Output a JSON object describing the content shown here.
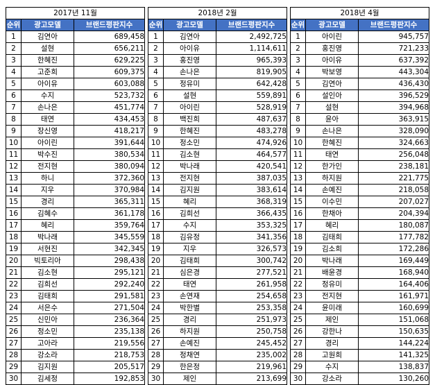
{
  "headers": {
    "rank": "순위",
    "model": "광고모델",
    "index": "브랜드평판지수"
  },
  "panels": [
    {
      "period": "2017년 11월",
      "rows": [
        [
          "1",
          "김연아",
          "689,458"
        ],
        [
          "2",
          "설현",
          "656,211"
        ],
        [
          "3",
          "한혜진",
          "629,225"
        ],
        [
          "4",
          "고준희",
          "609,375"
        ],
        [
          "5",
          "아이유",
          "603,088"
        ],
        [
          "6",
          "수지",
          "523,732"
        ],
        [
          "7",
          "손나은",
          "451,774"
        ],
        [
          "8",
          "태연",
          "434,453"
        ],
        [
          "9",
          "장신영",
          "418,217"
        ],
        [
          "10",
          "아이린",
          "391,644"
        ],
        [
          "11",
          "박수진",
          "380,534"
        ],
        [
          "12",
          "전지현",
          "380,094"
        ],
        [
          "13",
          "하니",
          "372,360"
        ],
        [
          "14",
          "지우",
          "370,984"
        ],
        [
          "15",
          "경리",
          "365,311"
        ],
        [
          "16",
          "김혜수",
          "361,178"
        ],
        [
          "17",
          "혜리",
          "359,764"
        ],
        [
          "18",
          "박나래",
          "345,559"
        ],
        [
          "19",
          "서현진",
          "342,345"
        ],
        [
          "20",
          "빅토리아",
          "298,438"
        ],
        [
          "21",
          "김소현",
          "295,121"
        ],
        [
          "22",
          "김희선",
          "292,240"
        ],
        [
          "23",
          "김태희",
          "291,581"
        ],
        [
          "24",
          "서은수",
          "271,504"
        ],
        [
          "25",
          "신민아",
          "236,364"
        ],
        [
          "26",
          "정소민",
          "235,138"
        ],
        [
          "27",
          "고아라",
          "219,556"
        ],
        [
          "28",
          "강소라",
          "218,753"
        ],
        [
          "29",
          "김지원",
          "205,517"
        ],
        [
          "30",
          "김세정",
          "192,853"
        ]
      ]
    },
    {
      "period": "2018년 2월",
      "rows": [
        [
          "1",
          "김연아",
          "2,492,725"
        ],
        [
          "2",
          "아이유",
          "1,114,611"
        ],
        [
          "3",
          "홍진영",
          "965,393"
        ],
        [
          "4",
          "손나은",
          "819,905"
        ],
        [
          "5",
          "정유미",
          "642,428"
        ],
        [
          "6",
          "설현",
          "559,891"
        ],
        [
          "7",
          "아이린",
          "528,919"
        ],
        [
          "8",
          "백진희",
          "487,637"
        ],
        [
          "9",
          "한혜진",
          "483,278"
        ],
        [
          "10",
          "정소민",
          "474,926"
        ],
        [
          "11",
          "김소현",
          "464,577"
        ],
        [
          "12",
          "박나래",
          "420,541"
        ],
        [
          "13",
          "전지현",
          "387,035"
        ],
        [
          "14",
          "김지원",
          "383,614"
        ],
        [
          "15",
          "혜리",
          "368,319"
        ],
        [
          "16",
          "김희선",
          "366,435"
        ],
        [
          "17",
          "수지",
          "353,325"
        ],
        [
          "18",
          "김유정",
          "341,356"
        ],
        [
          "19",
          "지우",
          "326,573"
        ],
        [
          "20",
          "김태희",
          "300,742"
        ],
        [
          "21",
          "심은경",
          "277,521"
        ],
        [
          "22",
          "태연",
          "261,958"
        ],
        [
          "23",
          "손연재",
          "254,658"
        ],
        [
          "24",
          "박한별",
          "253,358"
        ],
        [
          "25",
          "경리",
          "251,973"
        ],
        [
          "26",
          "하지원",
          "250,758"
        ],
        [
          "27",
          "손예진",
          "245,452"
        ],
        [
          "28",
          "정채연",
          "235,002"
        ],
        [
          "29",
          "한은정",
          "219,961"
        ],
        [
          "30",
          "제인",
          "213,699"
        ]
      ]
    },
    {
      "period": "2018년 4월",
      "rows": [
        [
          "1",
          "아이린",
          "945,757"
        ],
        [
          "2",
          "홍진영",
          "721,233"
        ],
        [
          "3",
          "아이유",
          "637,392"
        ],
        [
          "4",
          "박보영",
          "443,304"
        ],
        [
          "5",
          "김연아",
          "436,430"
        ],
        [
          "6",
          "설인아",
          "396,529"
        ],
        [
          "7",
          "설현",
          "394,968"
        ],
        [
          "8",
          "윤아",
          "363,915"
        ],
        [
          "9",
          "손나은",
          "328,090"
        ],
        [
          "10",
          "한혜진",
          "324,663"
        ],
        [
          "11",
          "태연",
          "256,048"
        ],
        [
          "12",
          "한가인",
          "238,181"
        ],
        [
          "13",
          "하지원",
          "221,775"
        ],
        [
          "14",
          "손예진",
          "218,058"
        ],
        [
          "15",
          "이수민",
          "207,027"
        ],
        [
          "16",
          "한채아",
          "204,394"
        ],
        [
          "17",
          "혜리",
          "180,087"
        ],
        [
          "18",
          "김태희",
          "177,782"
        ],
        [
          "19",
          "김소희",
          "172,286"
        ],
        [
          "20",
          "박나래",
          "169,449"
        ],
        [
          "21",
          "배윤경",
          "168,940"
        ],
        [
          "22",
          "정유미",
          "164,406"
        ],
        [
          "23",
          "전지현",
          "161,971"
        ],
        [
          "24",
          "윤미래",
          "160,699"
        ],
        [
          "25",
          "제인",
          "151,068"
        ],
        [
          "26",
          "강한나",
          "150,635"
        ],
        [
          "27",
          "경리",
          "144,224"
        ],
        [
          "28",
          "고원희",
          "141,325"
        ],
        [
          "29",
          "수지",
          "138,837"
        ],
        [
          "30",
          "강소라",
          "130,260"
        ]
      ]
    }
  ]
}
